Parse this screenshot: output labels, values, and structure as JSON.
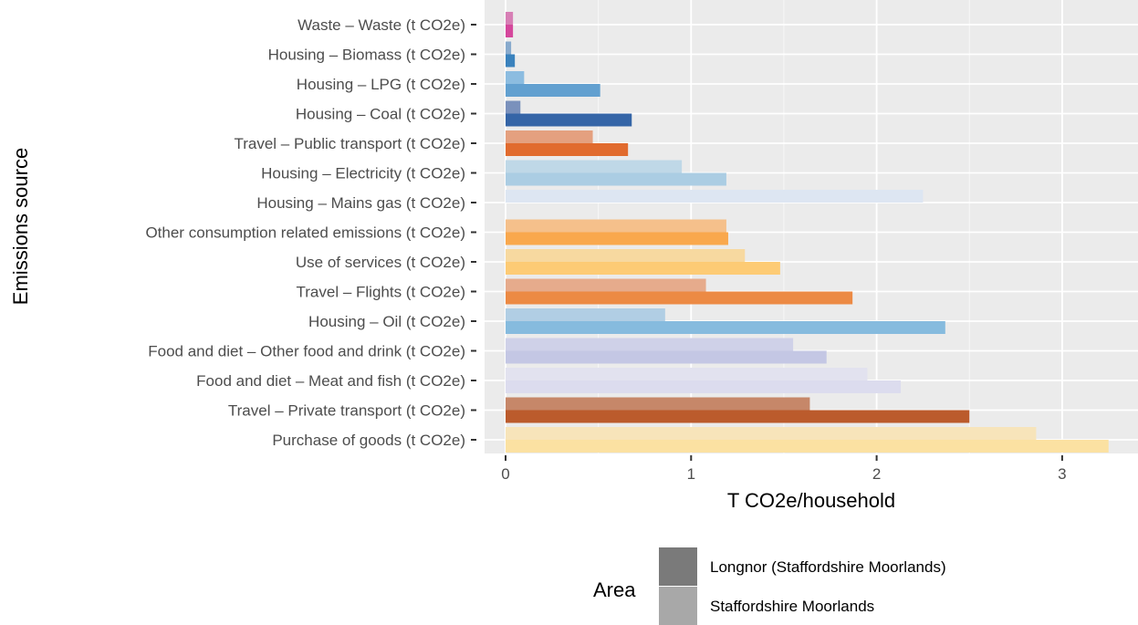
{
  "chart_data": {
    "type": "bar",
    "orientation": "horizontal",
    "xlabel": "T CO2e/household",
    "ylabel": "Emissions source",
    "xlim": [
      0,
      3.3
    ],
    "xticks": [
      0,
      1,
      2,
      3
    ],
    "grid": true,
    "legend": {
      "title": "Area",
      "placement": "bottom",
      "entries": [
        "Longnor (Staffordshire Moorlands)",
        "Staffordshire Moorlands"
      ],
      "swatch_colors": [
        "#7a7a7a",
        "#a8a8a8"
      ]
    },
    "categories": [
      "Waste – Waste (t CO2e)",
      "Housing – Biomass (t CO2e)",
      "Housing – LPG (t CO2e)",
      "Housing – Coal (t CO2e)",
      "Travel – Public transport (t CO2e)",
      "Housing – Electricity (t CO2e)",
      "Housing – Mains gas (t CO2e)",
      "Other consumption related emissions (t CO2e)",
      "Use of services (t CO2e)",
      "Travel – Flights (t CO2e)",
      "Housing – Oil (t CO2e)",
      "Food and diet – Other food and drink (t CO2e)",
      "Food and diet – Meat and fish (t CO2e)",
      "Travel – Private transport (t CO2e)",
      "Purchase of goods (t CO2e)"
    ],
    "series": [
      {
        "name": "Longnor (Staffordshire Moorlands)",
        "values": [
          0.04,
          0.05,
          0.51,
          0.68,
          0.66,
          1.19,
          0.0,
          1.2,
          1.48,
          1.87,
          2.37,
          1.73,
          2.13,
          2.5,
          3.25
        ]
      },
      {
        "name": "Staffordshire Moorlands",
        "values": [
          0.04,
          0.03,
          0.1,
          0.08,
          0.47,
          0.95,
          2.25,
          1.19,
          1.29,
          1.08,
          0.86,
          1.55,
          1.95,
          1.64,
          2.86
        ]
      }
    ],
    "bar_colors": [
      [
        "#d5479c",
        "#d77fb5"
      ],
      [
        "#3a82bd",
        "#88aacd"
      ],
      [
        "#62a0d0",
        "#8cbce0"
      ],
      [
        "#3565a7",
        "#7a91bc"
      ],
      [
        "#e16b2e",
        "#e4a07f"
      ],
      [
        "#abcde3",
        "#bfd8e7"
      ],
      [
        "#dde6f2",
        "#dde6f2"
      ],
      [
        "#f9a84d",
        "#f5c08b"
      ],
      [
        "#fdcb75",
        "#f7d9a0"
      ],
      [
        "#ec8a44",
        "#e6ab8c"
      ],
      [
        "#86bbde",
        "#b1cee4"
      ],
      [
        "#c4c7e4",
        "#cfd1e8"
      ],
      [
        "#dcdcee",
        "#e2e2ef"
      ],
      [
        "#bb5b2c",
        "#c68769"
      ],
      [
        "#fbe1a2",
        "#f7e4ba"
      ]
    ]
  }
}
